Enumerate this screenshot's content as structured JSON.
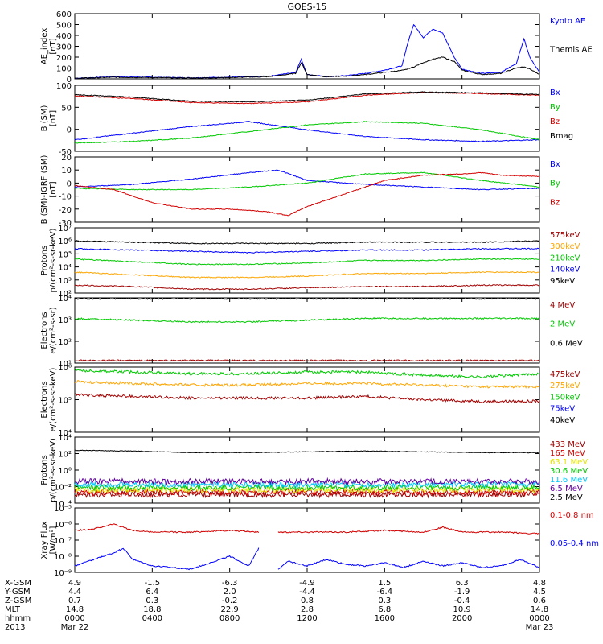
{
  "title": "GOES-15",
  "colors": {
    "black": "#000000",
    "blue": "#0000ff",
    "red": "#d20000",
    "green": "#00c800",
    "orange": "#ffa500",
    "darkred": "#a00000",
    "yellow": "#e6e600",
    "cyan": "#00c8ff",
    "purple": "#6400a0"
  },
  "chart_data": [
    {
      "type": "line",
      "id": "ae",
      "ylabel": [
        "AE_index",
        "[nT]"
      ],
      "yticks": [
        "600",
        "500",
        "400",
        "300",
        "200",
        "100",
        "0"
      ],
      "ylim": [
        0,
        600
      ],
      "series": [
        {
          "name": "Kyoto AE",
          "color": "#0000ff",
          "x": [
            0,
            2,
            4,
            6,
            8,
            10,
            11.4,
            11.7,
            12,
            13,
            14,
            15,
            16,
            16.9,
            17.2,
            17.5,
            18,
            18.5,
            19,
            19.6,
            20,
            21,
            22,
            22.8,
            23.2,
            23.5,
            24
          ],
          "values": [
            5,
            20,
            15,
            10,
            15,
            25,
            60,
            180,
            40,
            20,
            30,
            50,
            80,
            120,
            330,
            500,
            380,
            460,
            420,
            200,
            90,
            50,
            60,
            140,
            370,
            200,
            60
          ]
        },
        {
          "name": "Themis AE",
          "color": "#000000",
          "x": [
            0,
            2,
            4,
            6,
            8,
            10,
            11.4,
            11.7,
            12,
            13,
            14,
            15,
            16,
            17,
            17.5,
            18,
            18.5,
            19,
            19.6,
            20,
            21,
            22,
            22.8,
            23.2,
            23.5,
            24
          ],
          "values": [
            5,
            15,
            12,
            8,
            12,
            20,
            50,
            150,
            40,
            20,
            25,
            40,
            60,
            80,
            110,
            150,
            180,
            200,
            160,
            80,
            40,
            50,
            100,
            110,
            90,
            40
          ]
        }
      ]
    },
    {
      "type": "line",
      "id": "bsm",
      "ylabel": [
        "B (SM)",
        "[nT]"
      ],
      "yticks": [
        "100",
        "50",
        "0",
        "-50"
      ],
      "ylim": [
        -60,
        140
      ],
      "series": [
        {
          "name": "Bx",
          "color": "#0000ff",
          "x": [
            0,
            3,
            6,
            9,
            12,
            15,
            18,
            21,
            24
          ],
          "values": [
            -25,
            -5,
            15,
            30,
            5,
            -15,
            -25,
            -30,
            -25
          ]
        },
        {
          "name": "By",
          "color": "#00c800",
          "x": [
            0,
            3,
            6,
            9,
            12,
            15,
            18,
            21,
            24
          ],
          "values": [
            -35,
            -30,
            -20,
            0,
            20,
            30,
            25,
            5,
            -25
          ]
        },
        {
          "name": "Bz",
          "color": "#d20000",
          "x": [
            0,
            3,
            6,
            9,
            12,
            15,
            18,
            21,
            24
          ],
          "values": [
            108,
            100,
            88,
            85,
            90,
            110,
            118,
            115,
            110
          ]
        },
        {
          "name": "Bmag",
          "color": "#000000",
          "x": [
            0,
            3,
            6,
            9,
            12,
            15,
            18,
            21,
            24
          ],
          "values": [
            112,
            104,
            92,
            90,
            95,
            114,
            120,
            117,
            112
          ]
        }
      ]
    },
    {
      "type": "line",
      "id": "bigrf",
      "ylabel": [
        "B (SM)-IGRF (SM)",
        "[nT]"
      ],
      "yticks": [
        "20",
        "10",
        "0",
        "-10",
        "-20",
        "-30"
      ],
      "ylim": [
        -30,
        20
      ],
      "series": [
        {
          "name": "Bx",
          "color": "#0000ff",
          "x": [
            0,
            3,
            6,
            9,
            10.5,
            12,
            15,
            18,
            21,
            24
          ],
          "values": [
            -3,
            -1,
            3,
            8,
            10,
            2,
            -1,
            -3,
            -5,
            -4
          ]
        },
        {
          "name": "By",
          "color": "#00c800",
          "x": [
            0,
            3,
            6,
            9,
            12,
            15,
            18,
            21,
            24
          ],
          "values": [
            -4,
            -5,
            -5,
            -3,
            0,
            7,
            8,
            2,
            -3
          ]
        },
        {
          "name": "Bz",
          "color": "#d20000",
          "x": [
            0,
            2,
            4,
            6,
            8,
            10,
            11,
            12,
            14,
            16,
            18,
            20,
            21,
            22,
            24
          ],
          "values": [
            -2,
            -5,
            -15,
            -20,
            -20,
            -22,
            -25,
            -18,
            -8,
            2,
            6,
            7,
            8,
            6,
            5
          ]
        }
      ]
    },
    {
      "type": "line",
      "id": "protons1",
      "log": true,
      "ylabel": [
        "Protons",
        "p/(cm²-s-sr-keV)"
      ],
      "yticks": [
        "10⁷",
        "10⁶",
        "10⁵",
        "10⁴",
        "10³",
        "10²"
      ],
      "ylim": [
        2,
        7
      ],
      "series": [
        {
          "name": "575keV",
          "color": "#a00000",
          "x": [
            0,
            3,
            6,
            9,
            12,
            15,
            18,
            21,
            24
          ],
          "values": [
            2.6,
            2.5,
            2.3,
            2.3,
            2.4,
            2.5,
            2.5,
            2.6,
            2.6
          ]
        },
        {
          "name": "300keV",
          "color": "#ffa500",
          "x": [
            0,
            3,
            6,
            9,
            12,
            15,
            18,
            21,
            24
          ],
          "values": [
            3.6,
            3.4,
            3.2,
            3.2,
            3.3,
            3.5,
            3.5,
            3.6,
            3.6
          ]
        },
        {
          "name": "210keV",
          "color": "#00c800",
          "x": [
            0,
            3,
            6,
            9,
            12,
            15,
            18,
            21,
            24
          ],
          "values": [
            4.6,
            4.4,
            4.2,
            4.2,
            4.3,
            4.5,
            4.5,
            4.6,
            4.6
          ]
        },
        {
          "name": "140keV",
          "color": "#0000ff",
          "x": [
            0,
            3,
            6,
            9,
            12,
            15,
            18,
            21,
            24
          ],
          "values": [
            5.4,
            5.3,
            5.2,
            5.1,
            5.2,
            5.3,
            5.3,
            5.4,
            5.4
          ]
        },
        {
          "name": "95keV",
          "color": "#000000",
          "x": [
            0,
            3,
            6,
            9,
            12,
            15,
            18,
            21,
            24
          ],
          "values": [
            6.0,
            5.9,
            5.8,
            5.8,
            5.8,
            5.9,
            5.9,
            5.9,
            6.0
          ]
        }
      ]
    },
    {
      "type": "line",
      "id": "electrons1",
      "log": true,
      "ylabel": [
        "Electrons",
        "e/(cm²-s-sr)"
      ],
      "yticks": [
        "10⁴",
        "10³",
        "10²",
        "10¹"
      ],
      "ylim": [
        1,
        4.8
      ],
      "series": [
        {
          "name": "4 MeV",
          "color": "#a00000",
          "x": [
            0,
            24
          ],
          "values": [
            1.15,
            1.15
          ]
        },
        {
          "name": "2 MeV",
          "color": "#00c800",
          "x": [
            0,
            3,
            6,
            9,
            12,
            15,
            18,
            21,
            24
          ],
          "values": [
            3.6,
            3.5,
            3.4,
            3.4,
            3.5,
            3.6,
            3.6,
            3.6,
            3.6
          ]
        },
        {
          "name": "0.6 MeV",
          "color": "#000000",
          "x": [
            0,
            24
          ],
          "values": [
            4.75,
            4.75
          ]
        }
      ]
    },
    {
      "type": "line",
      "id": "electrons2",
      "log": true,
      "ylabel": [
        "Electrons",
        "e/(cm²-s-sr-keV)"
      ],
      "yticks": [
        "10⁶",
        "10⁵",
        "10⁴"
      ],
      "ylim": [
        4,
        6
      ],
      "series": [
        {
          "name": "475keV",
          "color": "#a00000",
          "x": [
            0,
            3,
            6,
            9,
            12,
            15,
            18,
            21,
            24
          ],
          "values": [
            5.15,
            5.1,
            5.05,
            5.05,
            5.05,
            5.1,
            5.0,
            4.95,
            4.95
          ]
        },
        {
          "name": "275keV",
          "color": "#ffa500",
          "x": [
            0,
            3,
            6,
            9,
            12,
            15,
            18,
            21,
            24
          ],
          "values": [
            5.55,
            5.5,
            5.45,
            5.45,
            5.5,
            5.5,
            5.45,
            5.4,
            5.4
          ]
        },
        {
          "name": "150keV",
          "color": "#00c800",
          "x": [
            0,
            3,
            6,
            9,
            12,
            15,
            18,
            21,
            24
          ],
          "values": [
            5.9,
            5.85,
            5.8,
            5.8,
            5.85,
            5.85,
            5.75,
            5.7,
            5.8
          ]
        },
        {
          "name": "75keV",
          "color": "#0000ff",
          "x": [
            0,
            24
          ],
          "values": [
            6.05,
            6.05
          ]
        },
        {
          "name": "40keV",
          "color": "#000000",
          "x": [
            0,
            24
          ],
          "values": [
            6.1,
            6.1
          ]
        }
      ]
    },
    {
      "type": "line",
      "id": "protons2",
      "log": true,
      "ylabel": [
        "Protons",
        "p/(cm²-s-sr-keV)"
      ],
      "yticks": [
        "10⁴",
        "10²",
        "10⁰",
        "10⁻²",
        "10⁻⁴"
      ],
      "ylim": [
        -4.5,
        4
      ],
      "series": [
        {
          "name": "433 MeV",
          "color": "#a00000",
          "x": [
            0,
            24
          ],
          "values": [
            -3.4,
            -3.4
          ]
        },
        {
          "name": "165 MeV",
          "color": "#d20000",
          "x": [
            0,
            24
          ],
          "values": [
            -3.1,
            -3.1
          ]
        },
        {
          "name": "63.1 MeV",
          "color": "#e6e600",
          "x": [
            0,
            24
          ],
          "values": [
            -2.8,
            -2.8
          ]
        },
        {
          "name": "30.6 MeV",
          "color": "#00c800",
          "x": [
            0,
            24
          ],
          "values": [
            -2.5,
            -2.5
          ]
        },
        {
          "name": "11.6 MeV",
          "color": "#00c8ff",
          "x": [
            0,
            24
          ],
          "values": [
            -2.1,
            -2.1
          ]
        },
        {
          "name": "6.5 MeV",
          "color": "#6400a0",
          "x": [
            0,
            24
          ],
          "values": [
            -1.7,
            -1.7
          ]
        },
        {
          "name": "2.5 MeV",
          "color": "#000000",
          "x": [
            0,
            3,
            6,
            9,
            12,
            15,
            18,
            21,
            24
          ],
          "values": [
            2.3,
            2.2,
            2.0,
            2.0,
            2.1,
            2.2,
            2.1,
            2.0,
            2.0
          ]
        }
      ]
    },
    {
      "type": "line",
      "id": "xray",
      "log": true,
      "ylabel": [
        "Xray Flux",
        "[W/m²]"
      ],
      "yticks": [
        "10⁻⁵",
        "10⁻⁶",
        "10⁻⁷",
        "10⁻⁸",
        "10⁻⁹"
      ],
      "ylim": [
        -9,
        -5
      ],
      "series": [
        {
          "name": "0.1-0.8 nm",
          "color": "#d20000",
          "x": [
            0,
            1,
            2,
            2.5,
            3,
            4,
            6,
            8,
            9.5,
            10,
            10.5,
            12,
            14,
            16,
            18,
            19,
            20,
            22,
            24
          ],
          "values": [
            -6.4,
            -6.3,
            -6.0,
            -6.2,
            -6.4,
            -6.5,
            -6.5,
            -6.4,
            -6.5,
            null,
            -6.5,
            -6.5,
            -6.5,
            -6.4,
            -6.5,
            -6.2,
            -6.5,
            -6.5,
            -6.6
          ]
        },
        {
          "name": "0.05-0.4 nm",
          "color": "#0000ff",
          "x": [
            0,
            1,
            2,
            2.5,
            3,
            4,
            6,
            8,
            9,
            9.5,
            10,
            10.5,
            11,
            12,
            13,
            14,
            15,
            16,
            17,
            18,
            19,
            20,
            21,
            22,
            23,
            24
          ],
          "values": [
            -8.6,
            -8.2,
            -7.8,
            -7.5,
            -8.2,
            -8.6,
            -8.8,
            -8.0,
            -8.6,
            -7.5,
            null,
            -8.8,
            -8.3,
            -8.6,
            -8.2,
            -8.5,
            -8.6,
            -8.4,
            -8.7,
            -8.3,
            -8.6,
            -8.4,
            -8.7,
            -8.6,
            -8.2,
            -8.7
          ]
        }
      ]
    }
  ],
  "xaxis": {
    "rows": [
      {
        "label": "X-GSM",
        "values": [
          "4.9",
          "-1.5",
          "-6.3",
          "-4.9",
          "1.5",
          "6.3",
          "4.8"
        ]
      },
      {
        "label": "Y-GSM",
        "values": [
          "4.4",
          "6.4",
          "2.0",
          "-4.4",
          "-6.4",
          "-1.9",
          "4.5"
        ]
      },
      {
        "label": "Z-GSM",
        "values": [
          "0.7",
          "0.3",
          "-0.2",
          "0.8",
          "0.3",
          "-0.4",
          "0.6"
        ]
      },
      {
        "label": "MLT",
        "values": [
          "14.8",
          "18.8",
          "22.9",
          "2.8",
          "6.8",
          "10.9",
          "14.8"
        ]
      },
      {
        "label": "hhmm",
        "values": [
          "0000",
          "0400",
          "0800",
          "1200",
          "1600",
          "2000",
          "0000"
        ]
      },
      {
        "label": "2013",
        "values": [
          "Mar 22",
          "",
          "",
          "",
          "",
          "",
          "Mar 23"
        ]
      }
    ]
  }
}
